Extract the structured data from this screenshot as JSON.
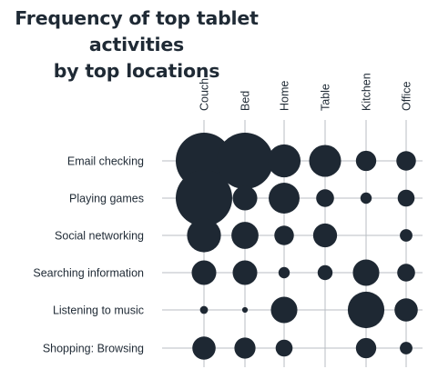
{
  "chart_data": {
    "type": "bubble-matrix",
    "title": [
      "Frequency of top tablet activities",
      "by top locations"
    ],
    "columns": [
      "Couch",
      "Bed",
      "Home",
      "Table",
      "Kitchen",
      "Office"
    ],
    "rows": [
      "Email checking",
      "Playing games",
      "Social networking",
      "Searching information",
      "Listening to music",
      "Shopping: Browsing"
    ],
    "values": [
      [
        100,
        100,
        34,
        32,
        13,
        12
      ],
      [
        100,
        19,
        30,
        10,
        4,
        9
      ],
      [
        36,
        23,
        12,
        18,
        0,
        5
      ],
      [
        19,
        19,
        4,
        7,
        22,
        10
      ],
      [
        2,
        1,
        22,
        0,
        42,
        17
      ],
      [
        17,
        14,
        9,
        0,
        13,
        5
      ]
    ],
    "grid": true,
    "bubble_color": "#1e2833"
  }
}
